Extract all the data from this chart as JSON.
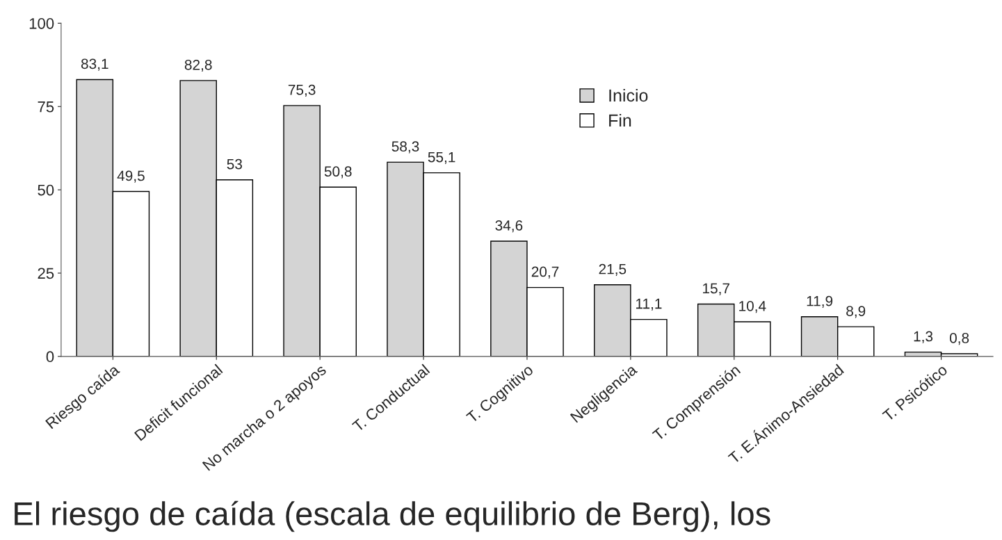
{
  "chart_data": {
    "type": "bar",
    "categories": [
      "Riesgo caída",
      "Deficit funcional",
      "No marcha o 2 apoyos",
      "T. Conductual",
      "T. Cognitivo",
      "Negligencia",
      "T. Comprensión",
      "T. E.Ánimo-Ansiedad",
      "T. Psicótico"
    ],
    "series": [
      {
        "name": "Inicio",
        "color": "#d4d4d4",
        "values": [
          83.1,
          82.8,
          75.3,
          58.3,
          34.6,
          21.5,
          15.7,
          11.9,
          1.3
        ],
        "value_labels": [
          "83,1",
          "82,8",
          "75,3",
          "58,3",
          "34,6",
          "21,5",
          "15,7",
          "11,9",
          "1,3"
        ]
      },
      {
        "name": "Fin",
        "color": "#ffffff",
        "values": [
          49.5,
          53,
          50.8,
          55.1,
          20.7,
          11.1,
          10.4,
          8.9,
          0.8
        ],
        "value_labels": [
          "49,5",
          "53",
          "50,8",
          "55,1",
          "20,7",
          "11,1",
          "10,4",
          "8,9",
          "0,8"
        ]
      }
    ],
    "ylim": [
      0,
      100
    ],
    "yticks": [
      0,
      25,
      50,
      75,
      100
    ],
    "grid": false,
    "legend": "top right",
    "annotations": [
      "El riesgo de caída (escala de equilibrio de Berg), los"
    ]
  }
}
